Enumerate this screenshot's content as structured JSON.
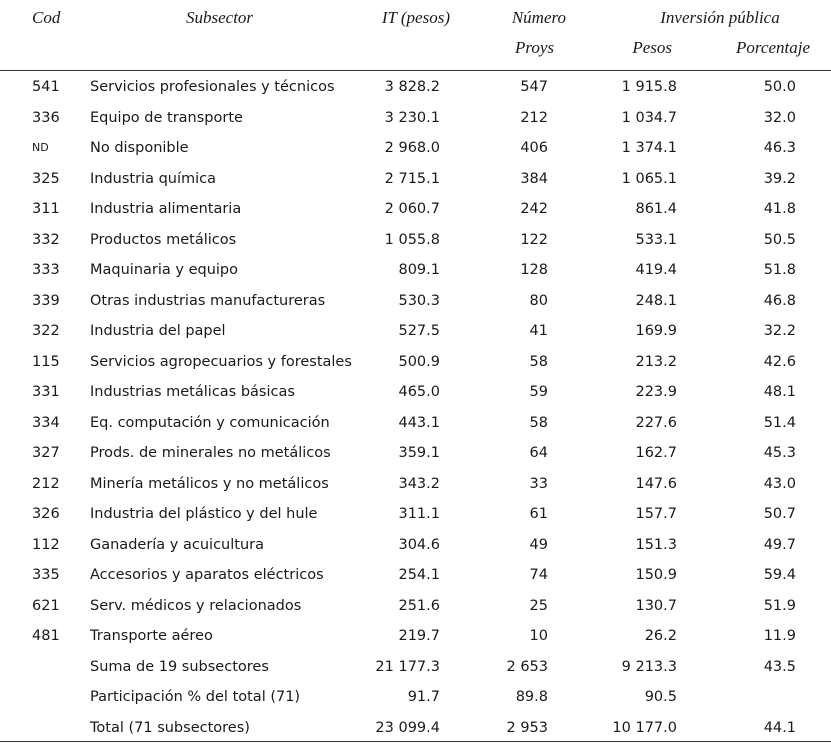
{
  "header": {
    "cod": "Cod",
    "subsector": "Subsector",
    "it": "IT (pesos)",
    "numero": "Número",
    "proys": "Proys",
    "inversion": "Inversión pública",
    "pesos": "Pesos",
    "porcentaje": "Porcentaje"
  },
  "table": {
    "rows": [
      {
        "cod": "541",
        "subsector": "Servicios profesionales y técnicos",
        "it": "3 828.2",
        "proys": "547",
        "pesos": "1 915.8",
        "porcentaje": "50.0"
      },
      {
        "cod": "336",
        "subsector": "Equipo de transporte",
        "it": "3 230.1",
        "proys": "212",
        "pesos": "1 034.7",
        "porcentaje": "32.0"
      },
      {
        "cod": "ND",
        "subsector": "No disponible",
        "it": "2 968.0",
        "proys": "406",
        "pesos": "1 374.1",
        "porcentaje": "46.3"
      },
      {
        "cod": "325",
        "subsector": "Industria química",
        "it": "2 715.1",
        "proys": "384",
        "pesos": "1 065.1",
        "porcentaje": "39.2"
      },
      {
        "cod": "311",
        "subsector": "Industria alimentaria",
        "it": "2 060.7",
        "proys": "242",
        "pesos": "861.4",
        "porcentaje": "41.8"
      },
      {
        "cod": "332",
        "subsector": "Productos metálicos",
        "it": "1 055.8",
        "proys": "122",
        "pesos": "533.1",
        "porcentaje": "50.5"
      },
      {
        "cod": "333",
        "subsector": "Maquinaria y equipo",
        "it": "809.1",
        "proys": "128",
        "pesos": "419.4",
        "porcentaje": "51.8"
      },
      {
        "cod": "339",
        "subsector": "Otras industrias manufactureras",
        "it": "530.3",
        "proys": "80",
        "pesos": "248.1",
        "porcentaje": "46.8"
      },
      {
        "cod": "322",
        "subsector": "Industria del papel",
        "it": "527.5",
        "proys": "41",
        "pesos": "169.9",
        "porcentaje": "32.2"
      },
      {
        "cod": "115",
        "subsector": "Servicios agropecuarios y forestales",
        "it": "500.9",
        "proys": "58",
        "pesos": "213.2",
        "porcentaje": "42.6"
      },
      {
        "cod": "331",
        "subsector": "Industrias metálicas básicas",
        "it": "465.0",
        "proys": "59",
        "pesos": "223.9",
        "porcentaje": "48.1"
      },
      {
        "cod": "334",
        "subsector": "Eq. computación y comunicación",
        "it": "443.1",
        "proys": "58",
        "pesos": "227.6",
        "porcentaje": "51.4"
      },
      {
        "cod": "327",
        "subsector": "Prods. de minerales no metálicos",
        "it": "359.1",
        "proys": "64",
        "pesos": "162.7",
        "porcentaje": "45.3"
      },
      {
        "cod": "212",
        "subsector": "Minería metálicos y no metálicos",
        "it": "343.2",
        "proys": "33",
        "pesos": "147.6",
        "porcentaje": "43.0"
      },
      {
        "cod": "326",
        "subsector": "Industria del plástico y del hule",
        "it": "311.1",
        "proys": "61",
        "pesos": "157.7",
        "porcentaje": "50.7"
      },
      {
        "cod": "112",
        "subsector": "Ganadería y acuicultura",
        "it": "304.6",
        "proys": "49",
        "pesos": "151.3",
        "porcentaje": "49.7"
      },
      {
        "cod": "335",
        "subsector": "Accesorios y aparatos eléctricos",
        "it": "254.1",
        "proys": "74",
        "pesos": "150.9",
        "porcentaje": "59.4"
      },
      {
        "cod": "621",
        "subsector": "Serv. médicos y relacionados",
        "it": "251.6",
        "proys": "25",
        "pesos": "130.7",
        "porcentaje": "51.9"
      },
      {
        "cod": "481",
        "subsector": "Transporte aéreo",
        "it": "219.7",
        "proys": "10",
        "pesos": "26.2",
        "porcentaje": "11.9"
      },
      {
        "subsector": "Suma de 19 subsectores",
        "it": "21 177.3",
        "proys": "2 653",
        "pesos": "9 213.3",
        "porcentaje": "43.5"
      },
      {
        "subsector": "Participación % del total (71)",
        "it": "91.7",
        "proys": "89.8",
        "pesos": "90.5"
      },
      {
        "subsector": "Total (71 subsectores)",
        "it": "23 099.4",
        "proys": "2 953",
        "pesos": "10 177.0",
        "porcentaje": "44.1"
      }
    ]
  }
}
